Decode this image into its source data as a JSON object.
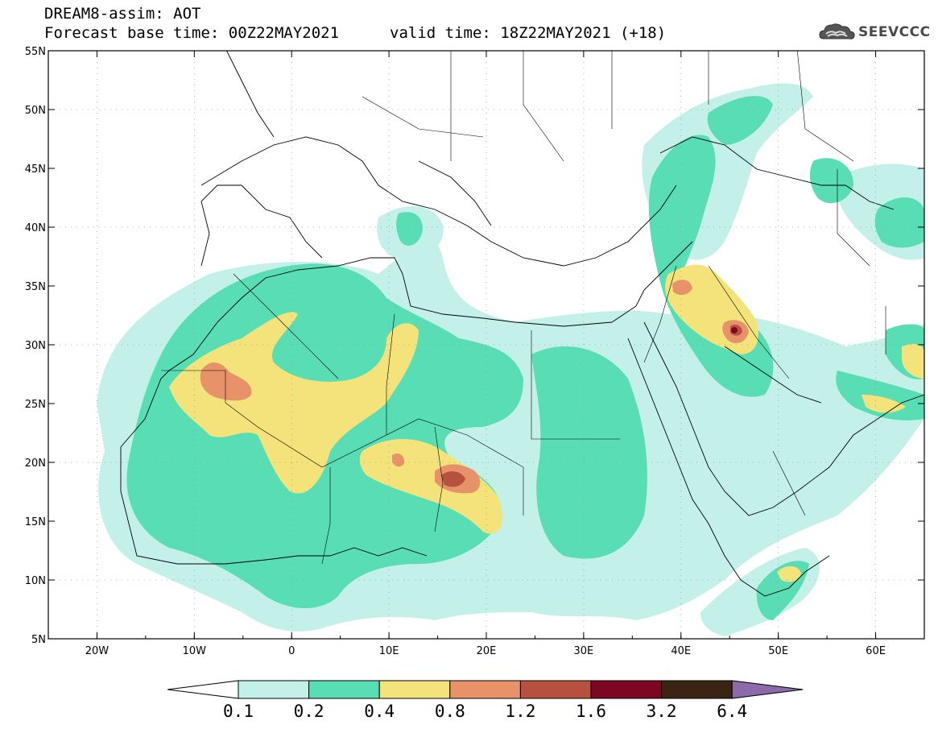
{
  "title": {
    "line1": "DREAM8-assim: AOT",
    "base_time": "Forecast base time: 00Z22MAY2021",
    "valid_time": "valid time: 18Z22MAY2021 (+18)"
  },
  "logo": {
    "text": "SEEVCCC",
    "icon": "cloud-icon"
  },
  "axes": {
    "lon_labels": [
      "20W",
      "10W",
      "0",
      "10E",
      "20E",
      "30E",
      "40E",
      "50E",
      "60E"
    ],
    "lat_labels": [
      "55N",
      "50N",
      "45N",
      "40N",
      "35N",
      "30N",
      "25N",
      "20N",
      "15N",
      "10N",
      "5N"
    ],
    "lon_range": [
      -25,
      65
    ],
    "lat_range": [
      5,
      55
    ]
  },
  "legend": {
    "labels": [
      "0.1",
      "0.2",
      "0.4",
      "0.8",
      "1.2",
      "1.6",
      "3.2",
      "6.4"
    ],
    "colors": [
      "#ffffff",
      "#c4f0ea",
      "#58ddb4",
      "#f3e37a",
      "#e8926a",
      "#b5513e",
      "#7d0623",
      "#3b2413",
      "#8e6aaa"
    ]
  }
}
